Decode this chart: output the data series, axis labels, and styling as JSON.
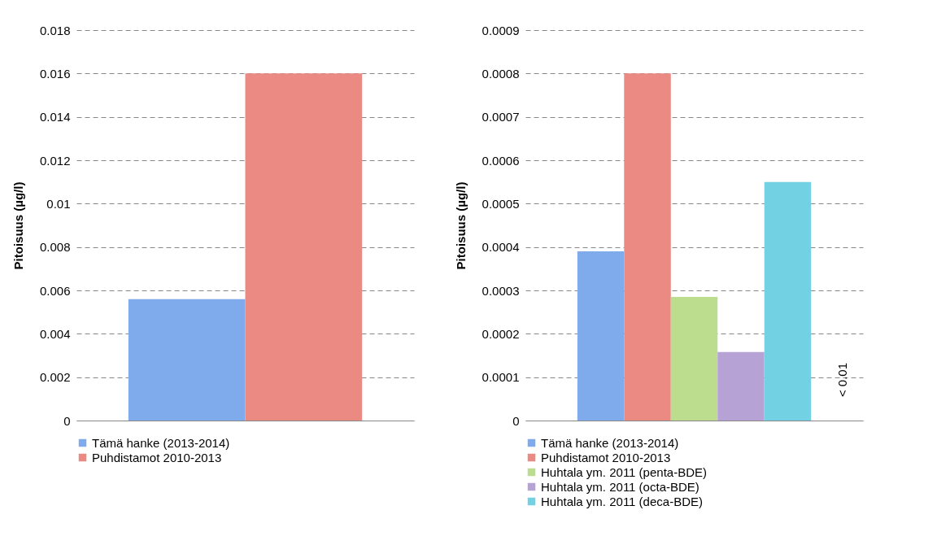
{
  "chart_data": [
    {
      "type": "bar",
      "categories": [
        null
      ],
      "ylabel": "Pitoisuus (µg/l)",
      "ylim": [
        0,
        0.018
      ],
      "yticks": [
        0,
        0.002,
        0.004,
        0.006,
        0.008,
        0.01,
        0.012,
        0.014,
        0.016,
        0.018
      ],
      "grid": "y",
      "legend": "bottom",
      "series": [
        {
          "name": "Tämä hanke (2013-2014)",
          "color": "#7fabec",
          "values": [
            0.0056
          ]
        },
        {
          "name": "Puhdistamot 2010-2013",
          "color": "#ea8a82",
          "values": [
            0.016
          ]
        }
      ]
    },
    {
      "type": "bar",
      "categories": [
        null
      ],
      "ylabel": "Pitoisuus (µg/l)",
      "ylim": [
        0,
        0.0009
      ],
      "yticks": [
        0,
        0.0001,
        0.0002,
        0.0003,
        0.0004,
        0.0005,
        0.0006,
        0.0007,
        0.0008,
        0.0009
      ],
      "grid": "y",
      "legend": "bottom",
      "annotations": [
        "< 0.01"
      ],
      "series": [
        {
          "name": "Tämä hanke (2013-2014)",
          "color": "#7fabec",
          "values": [
            0.00039
          ]
        },
        {
          "name": "Puhdistamot 2010-2013",
          "color": "#ea8a82",
          "values": [
            0.0008
          ]
        },
        {
          "name": "Huhtala ym. 2011 (penta-BDE)",
          "color": "#bcdc8e",
          "values": [
            0.000285
          ]
        },
        {
          "name": "Huhtala ym. 2011 (octa-BDE)",
          "color": "#b7a2d6",
          "values": [
            0.000158
          ]
        },
        {
          "name": "Huhtala ym. 2011 (deca-BDE)",
          "color": "#72d2e4",
          "values": [
            0.00055
          ]
        }
      ]
    }
  ]
}
